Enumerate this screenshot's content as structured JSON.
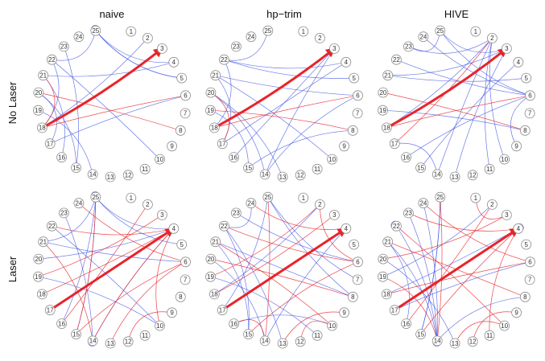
{
  "columns": [
    "naive",
    "hp−trim",
    "HIVE"
  ],
  "rows": [
    "No Laser",
    "Laser"
  ],
  "node_labels": [
    "1",
    "2",
    "3",
    "4",
    "5",
    "6",
    "7",
    "8",
    "9",
    "10",
    "11",
    "12",
    "13",
    "14",
    "15",
    "16",
    "17",
    "18",
    "19",
    "20",
    "21",
    "22",
    "23",
    "24",
    "25"
  ],
  "colors": {
    "positive_edge": "#e8242a",
    "negative_edge": "#3a4de0",
    "node_border": "#8a8a8a"
  },
  "panels": [
    {
      "column": "naive",
      "row": "No Laser",
      "thick": [
        [
          18,
          3
        ]
      ],
      "red": [
        [
          18,
          6
        ],
        [
          20,
          8
        ],
        [
          21,
          18
        ]
      ],
      "blue": [
        [
          25,
          5
        ],
        [
          25,
          4
        ],
        [
          25,
          22
        ],
        [
          22,
          10
        ],
        [
          23,
          15
        ],
        [
          22,
          18
        ],
        [
          21,
          4
        ],
        [
          21,
          16
        ],
        [
          20,
          15
        ],
        [
          20,
          17
        ],
        [
          19,
          14
        ],
        [
          18,
          2
        ],
        [
          17,
          6
        ],
        [
          5,
          25
        ],
        [
          25,
          25
        ]
      ]
    },
    {
      "column": "hp−trim",
      "row": "No Laser",
      "thick": [
        [
          18,
          3
        ]
      ],
      "red": [
        [
          18,
          6
        ],
        [
          19,
          8
        ],
        [
          20,
          17
        ]
      ],
      "blue": [
        [
          22,
          4
        ],
        [
          22,
          5
        ],
        [
          21,
          6
        ],
        [
          21,
          10
        ],
        [
          20,
          14
        ],
        [
          20,
          13
        ],
        [
          19,
          15
        ],
        [
          18,
          22
        ],
        [
          17,
          4
        ],
        [
          16,
          3
        ],
        [
          15,
          8
        ],
        [
          14,
          3
        ],
        [
          14,
          6
        ],
        [
          21,
          17
        ],
        [
          22,
          25
        ]
      ]
    },
    {
      "column": "HIVE",
      "row": "No Laser",
      "thick": [
        [
          18,
          3
        ]
      ],
      "red": [
        [
          18,
          6
        ],
        [
          20,
          8
        ],
        [
          17,
          2
        ]
      ],
      "blue": [
        [
          25,
          6
        ],
        [
          25,
          3
        ],
        [
          24,
          6
        ],
        [
          23,
          2
        ],
        [
          22,
          6
        ],
        [
          21,
          5
        ],
        [
          21,
          3
        ],
        [
          19,
          8
        ],
        [
          18,
          2
        ],
        [
          17,
          14
        ],
        [
          16,
          6
        ],
        [
          15,
          4
        ],
        [
          14,
          2
        ],
        [
          13,
          3
        ],
        [
          11,
          2
        ],
        [
          10,
          2
        ],
        [
          9,
          6
        ],
        [
          23,
          25
        ]
      ]
    },
    {
      "column": "naive",
      "row": "Laser",
      "thick": [
        [
          17,
          4
        ]
      ],
      "red": [
        [
          25,
          15
        ],
        [
          24,
          6
        ],
        [
          22,
          4
        ],
        [
          21,
          14
        ],
        [
          19,
          3
        ],
        [
          18,
          4
        ],
        [
          16,
          2
        ],
        [
          15,
          6
        ],
        [
          13,
          6
        ],
        [
          12,
          9
        ],
        [
          10,
          4
        ],
        [
          4,
          14
        ]
      ],
      "blue": [
        [
          25,
          4
        ],
        [
          25,
          21
        ],
        [
          23,
          14
        ],
        [
          22,
          10
        ],
        [
          21,
          6
        ],
        [
          20,
          4
        ],
        [
          19,
          10
        ],
        [
          16,
          25
        ],
        [
          15,
          25
        ],
        [
          14,
          4
        ],
        [
          5,
          25
        ],
        [
          25,
          25
        ],
        [
          14,
          14
        ]
      ]
    },
    {
      "column": "hp−trim",
      "row": "Laser",
      "thick": [
        [
          17,
          4
        ]
      ],
      "red": [
        [
          25,
          14
        ],
        [
          24,
          4
        ],
        [
          22,
          6
        ],
        [
          21,
          10
        ],
        [
          20,
          8
        ],
        [
          19,
          2
        ],
        [
          18,
          3
        ],
        [
          16,
          14
        ],
        [
          15,
          6
        ],
        [
          13,
          9
        ],
        [
          12,
          10
        ],
        [
          6,
          2
        ]
      ],
      "blue": [
        [
          25,
          7
        ],
        [
          25,
          8
        ],
        [
          24,
          22
        ],
        [
          23,
          6
        ],
        [
          22,
          13
        ],
        [
          21,
          15
        ],
        [
          21,
          8
        ],
        [
          20,
          14
        ],
        [
          19,
          11
        ],
        [
          18,
          2
        ],
        [
          17,
          25
        ],
        [
          16,
          10
        ],
        [
          15,
          22
        ],
        [
          14,
          4
        ]
      ]
    },
    {
      "column": "HIVE",
      "row": "Laser",
      "thick": [
        [
          17,
          4
        ]
      ],
      "red": [
        [
          25,
          14
        ],
        [
          24,
          6
        ],
        [
          23,
          4
        ],
        [
          22,
          10
        ],
        [
          21,
          8
        ],
        [
          20,
          3
        ],
        [
          19,
          14
        ],
        [
          18,
          6
        ],
        [
          16,
          2
        ],
        [
          15,
          4
        ],
        [
          13,
          10
        ],
        [
          12,
          9
        ],
        [
          11,
          4
        ],
        [
          3,
          1
        ]
      ],
      "blue": [
        [
          25,
          15
        ],
        [
          24,
          14
        ],
        [
          23,
          14
        ],
        [
          22,
          14
        ],
        [
          21,
          14
        ],
        [
          20,
          13
        ],
        [
          19,
          2
        ],
        [
          18,
          4
        ],
        [
          17,
          6
        ],
        [
          16,
          21
        ],
        [
          15,
          25
        ],
        [
          14,
          8
        ],
        [
          22,
          22
        ],
        [
          4,
          4
        ],
        [
          14,
          14
        ]
      ]
    }
  ]
}
